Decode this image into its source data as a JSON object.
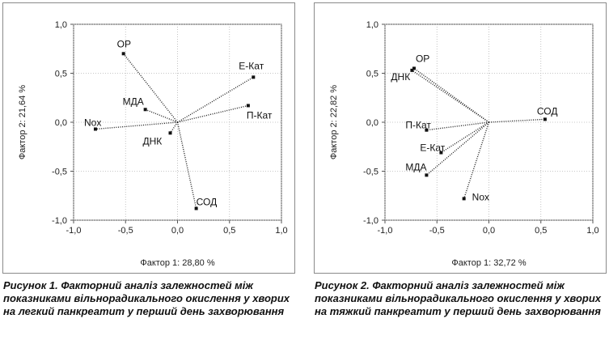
{
  "chart_data": [
    {
      "type": "scatter",
      "xlabel": "Фактор 1: 28,80 %",
      "ylabel": "Фактор 2: 21,64 %",
      "xlim": [
        -1.0,
        1.0
      ],
      "ylim": [
        -1.0,
        1.0
      ],
      "x_ticks": [
        "-1,0",
        "-0,5",
        "0,0",
        "0,5",
        "1,0"
      ],
      "y_ticks": [
        "1,0",
        "0,5",
        "0,0",
        "-0,5",
        "-1,0"
      ],
      "grid": true,
      "vectors_from_origin": true,
      "points": [
        {
          "label": "ОР",
          "x": -0.52,
          "y": 0.7
        },
        {
          "label": "Е-Кат",
          "x": 0.73,
          "y": 0.46
        },
        {
          "label": "МДА",
          "x": -0.31,
          "y": 0.13
        },
        {
          "label": "П-Кат",
          "x": 0.68,
          "y": 0.17
        },
        {
          "label": "Nox",
          "x": -0.79,
          "y": -0.07
        },
        {
          "label": "ДНК",
          "x": -0.07,
          "y": -0.11
        },
        {
          "label": "СОД",
          "x": 0.18,
          "y": -0.88
        }
      ]
    },
    {
      "type": "scatter",
      "xlabel": "Фактор 1: 32,72 %",
      "ylabel": "Фактор 2: 22,82 %",
      "xlim": [
        -1.0,
        1.0
      ],
      "ylim": [
        -1.0,
        1.0
      ],
      "x_ticks": [
        "-1,0",
        "-0,5",
        "0,0",
        "0,5",
        "1,0"
      ],
      "y_ticks": [
        "1,0",
        "0,5",
        "0,0",
        "-0,5",
        "-1,0"
      ],
      "grid": true,
      "vectors_from_origin": true,
      "points": [
        {
          "label": "ОР",
          "x": -0.72,
          "y": 0.55
        },
        {
          "label": "ДНК",
          "x": -0.74,
          "y": 0.53
        },
        {
          "label": "СОД",
          "x": 0.54,
          "y": 0.03
        },
        {
          "label": "П-Кат",
          "x": -0.6,
          "y": -0.08
        },
        {
          "label": "Е-Кат",
          "x": -0.46,
          "y": -0.31
        },
        {
          "label": "МДА",
          "x": -0.6,
          "y": -0.54
        },
        {
          "label": "Nox",
          "x": -0.24,
          "y": -0.78
        }
      ]
    }
  ],
  "captions": [
    {
      "label": "Рисунок 1.",
      "text": " Факторний аналіз залежностей між показниками вільнорадикального окислення у хворих на легкий панкреатит у перший день захворювання"
    },
    {
      "label": "Рисунок 2.",
      "text": " Факторний аналіз залежностей між показниками вільнорадикального окислення у хворих на тяжкий панкреатит у перший день захворювання"
    }
  ]
}
